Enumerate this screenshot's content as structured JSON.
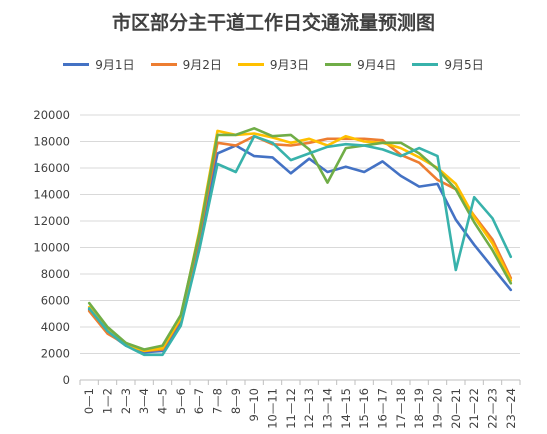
{
  "chart_data": {
    "type": "line",
    "title": "市区部分主干道工作日交通流量预测图",
    "xlabel": "",
    "ylabel": "",
    "ylim": [
      0,
      20000
    ],
    "yticks": [
      0,
      2000,
      4000,
      6000,
      8000,
      10000,
      12000,
      14000,
      16000,
      18000,
      20000
    ],
    "grid": true,
    "legend_position": "top",
    "categories": [
      "0—1",
      "1—2",
      "2—3",
      "3—4",
      "4—5",
      "5—6",
      "6—7",
      "7—8",
      "8—9",
      "9—10",
      "10—11",
      "11—12",
      "12—13",
      "13—14",
      "14—15",
      "15—16",
      "16—17",
      "17—18",
      "18—19",
      "19—20",
      "20—21",
      "21—22",
      "22—23",
      "23—24"
    ],
    "series": [
      {
        "name": "9月1日",
        "color": "#4472C4",
        "values": [
          5300,
          3600,
          2600,
          2100,
          2200,
          4300,
          10500,
          17100,
          17700,
          16900,
          16800,
          15600,
          16700,
          15700,
          16100,
          15700,
          16500,
          15400,
          14600,
          14800,
          12100,
          10200,
          8500,
          6800
        ]
      },
      {
        "name": "9月2日",
        "color": "#ED7D31",
        "values": [
          5200,
          3500,
          2700,
          2200,
          2300,
          4600,
          10800,
          17900,
          17700,
          18400,
          17800,
          17700,
          17900,
          18200,
          18200,
          18200,
          18100,
          17000,
          16400,
          15100,
          14400,
          12400,
          10600,
          7700
        ]
      },
      {
        "name": "9月3日",
        "color": "#FFC000",
        "values": [
          5500,
          3800,
          2700,
          2200,
          2400,
          4700,
          11200,
          18800,
          18500,
          18600,
          18300,
          17900,
          18200,
          17700,
          18400,
          18000,
          17900,
          17500,
          16800,
          16000,
          14800,
          12300,
          10300,
          7500
        ]
      },
      {
        "name": "9月4日",
        "color": "#70AD47",
        "values": [
          5800,
          4000,
          2800,
          2300,
          2600,
          4900,
          11000,
          18500,
          18500,
          19000,
          18400,
          18500,
          17400,
          14900,
          17500,
          17700,
          17900,
          17900,
          17100,
          15900,
          14400,
          11900,
          9800,
          7300
        ]
      },
      {
        "name": "9月5日",
        "color": "#38B2AB",
        "values": [
          5400,
          3700,
          2600,
          1900,
          1900,
          4100,
          9800,
          16300,
          15700,
          18400,
          17900,
          16600,
          17100,
          17600,
          17800,
          17700,
          17400,
          16900,
          17500,
          16900,
          8300,
          13800,
          12200,
          9300
        ]
      }
    ]
  }
}
